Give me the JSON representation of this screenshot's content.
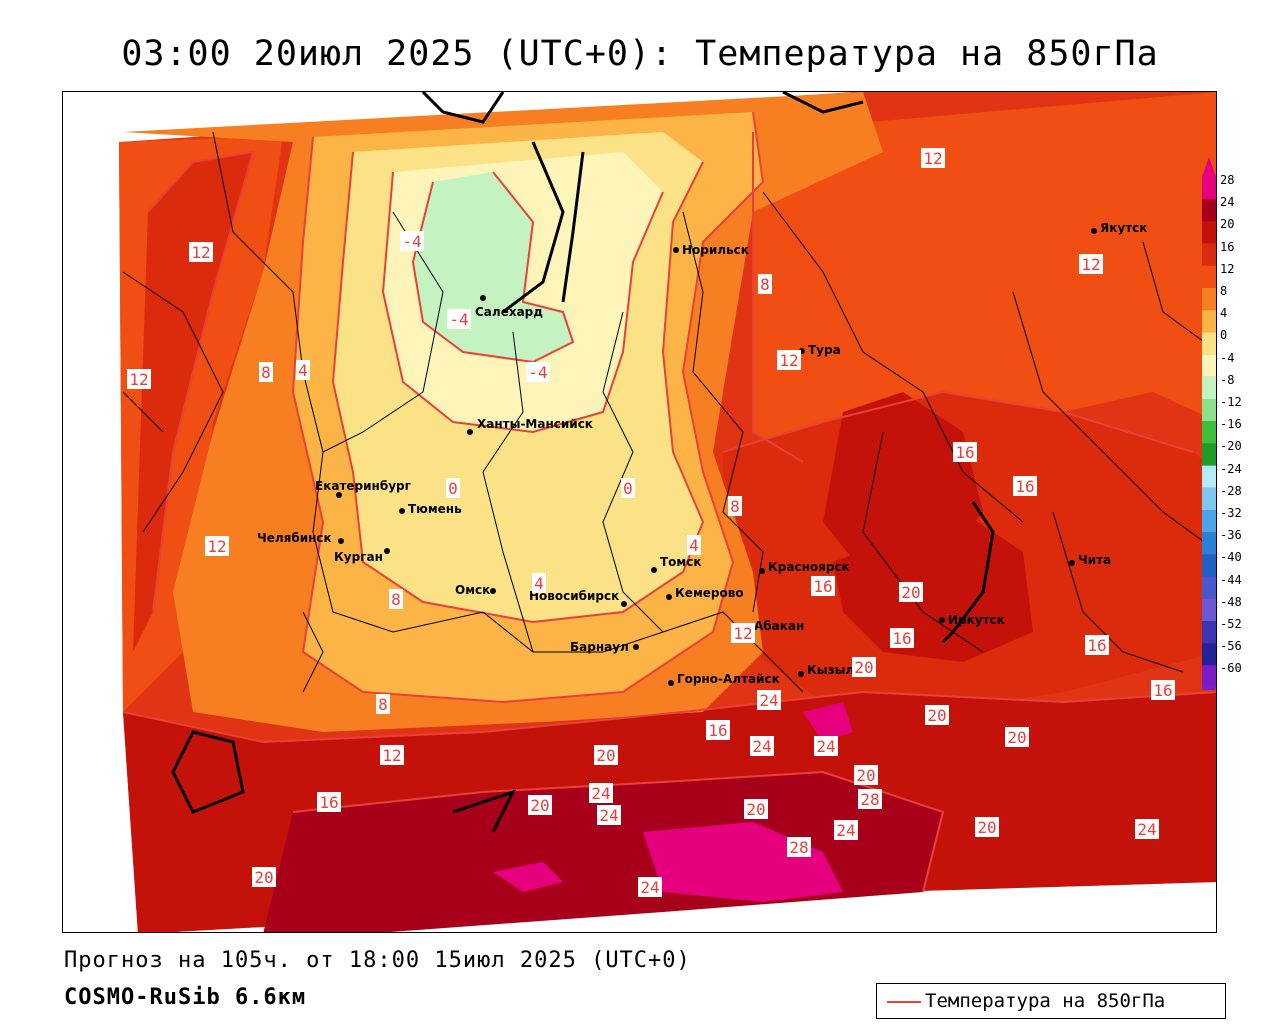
{
  "title": "03:00 20июл 2025 (UTC+0): Температура на 850гПа",
  "footer": {
    "forecast": "Прогноз на 105ч. от 18:00 15июл 2025 (UTC+0)",
    "model": "COSMO-RuSib 6.6км"
  },
  "key": {
    "label": "Температура на 850гПа",
    "color": "#e8403a"
  },
  "colorbar": {
    "levels": [
      {
        "value": "28",
        "color": "#e6007e"
      },
      {
        "value": "24",
        "color": "#a8001a"
      },
      {
        "value": "20",
        "color": "#c4120a"
      },
      {
        "value": "16",
        "color": "#dc2a0c"
      },
      {
        "value": "12",
        "color": "#f04e12"
      },
      {
        "value": "8",
        "color": "#f87e22"
      },
      {
        "value": "4",
        "color": "#fcb446"
      },
      {
        "value": "0",
        "color": "#fce286"
      },
      {
        "value": "-4",
        "color": "#fcf4b8"
      },
      {
        "value": "-8",
        "color": "#c4f2c0"
      },
      {
        "value": "-12",
        "color": "#8ce08a"
      },
      {
        "value": "-16",
        "color": "#3cc03a"
      },
      {
        "value": "-20",
        "color": "#1e9c2a"
      },
      {
        "value": "-24",
        "color": "#b2ecf4"
      },
      {
        "value": "-28",
        "color": "#7cc6f0"
      },
      {
        "value": "-32",
        "color": "#4aa4e8"
      },
      {
        "value": "-36",
        "color": "#2a82d8"
      },
      {
        "value": "-40",
        "color": "#2060c4"
      },
      {
        "value": "-44",
        "color": "#4a58d0"
      },
      {
        "value": "-48",
        "color": "#6e58d8"
      },
      {
        "value": "-52",
        "color": "#3a36b4"
      },
      {
        "value": "-56",
        "color": "#22229a"
      },
      {
        "value": "-60",
        "color": "#7a1cc8"
      }
    ]
  },
  "cities": [
    {
      "name": "Норильск"
    },
    {
      "name": "Якутск"
    },
    {
      "name": "Салехард"
    },
    {
      "name": "Тура"
    },
    {
      "name": "Ханты-Мансийск"
    },
    {
      "name": "Екатеринбург"
    },
    {
      "name": "Тюмень"
    },
    {
      "name": "Челябинск"
    },
    {
      "name": "Курган"
    },
    {
      "name": "Омск"
    },
    {
      "name": "Новосибирск"
    },
    {
      "name": "Томск"
    },
    {
      "name": "Кемерово"
    },
    {
      "name": "Красноярск"
    },
    {
      "name": "Барнаул"
    },
    {
      "name": "Абакан"
    },
    {
      "name": "Иркутск"
    },
    {
      "name": "Чита"
    },
    {
      "name": "Горно-Алтайск"
    },
    {
      "name": "Кызыл"
    }
  ],
  "isotherm_labels": [
    "12",
    "-4",
    "12",
    "4",
    "8",
    "12",
    "-4",
    "-4",
    "12",
    "8",
    "12",
    "0",
    "0",
    "16",
    "16",
    "8",
    "12",
    "4",
    "4",
    "16",
    "8",
    "20",
    "12",
    "16",
    "20",
    "8",
    "16",
    "24",
    "16",
    "20",
    "20",
    "12",
    "16",
    "20",
    "24",
    "24",
    "20",
    "16",
    "24",
    "20",
    "24",
    "28",
    "20",
    "20",
    "24",
    "24",
    "20",
    "28",
    "24"
  ]
}
